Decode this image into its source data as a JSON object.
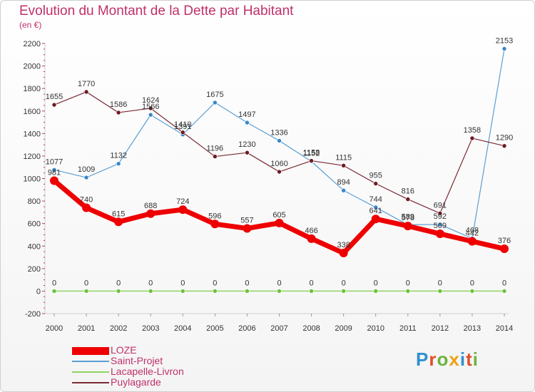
{
  "title": "Evolution du Montant de la Dette par Habitant",
  "subtitle": "(en €)",
  "logo": {
    "text": "Proxiti",
    "colors": [
      "#2f8fd0",
      "#e0502a",
      "#6db33f",
      "#e8a317",
      "#2f8fd0",
      "#e0502a",
      "#6db33f"
    ]
  },
  "chart_data": {
    "type": "line",
    "x": [
      "2000",
      "2001",
      "2002",
      "2003",
      "2004",
      "2005",
      "2006",
      "2007",
      "2008",
      "2009",
      "2010",
      "2011",
      "2012",
      "2013",
      "2014"
    ],
    "ylim": [
      -200,
      2200
    ],
    "yticks": [
      -200,
      0,
      200,
      400,
      600,
      800,
      1000,
      1200,
      1400,
      1600,
      1800,
      2000,
      2200
    ],
    "grid": false,
    "legend_position": "bottom-left",
    "series": [
      {
        "name": "LOZE",
        "color": "#ee0000",
        "values": [
          981,
          740,
          615,
          688,
          724,
          596,
          557,
          605,
          466,
          338,
          641,
          578,
          509,
          442,
          376
        ]
      },
      {
        "name": "Saint-Projet",
        "color": "#5a9fd4",
        "values": [
          1077,
          1009,
          1132,
          1566,
          1391,
          1675,
          1497,
          1336,
          1152,
          894,
          744,
          589,
          592,
          468,
          2153
        ]
      },
      {
        "name": "Lacapelle-Livron",
        "color": "#8fd460",
        "values": [
          0,
          0,
          0,
          0,
          0,
          0,
          0,
          0,
          0,
          0,
          0,
          0,
          0,
          0,
          0
        ]
      },
      {
        "name": "Puylagarde",
        "color": "#7a2a34",
        "values": [
          1655,
          1770,
          1586,
          1624,
          1410,
          1196,
          1230,
          1060,
          1158,
          1115,
          955,
          816,
          691,
          1358,
          1290
        ]
      }
    ]
  }
}
